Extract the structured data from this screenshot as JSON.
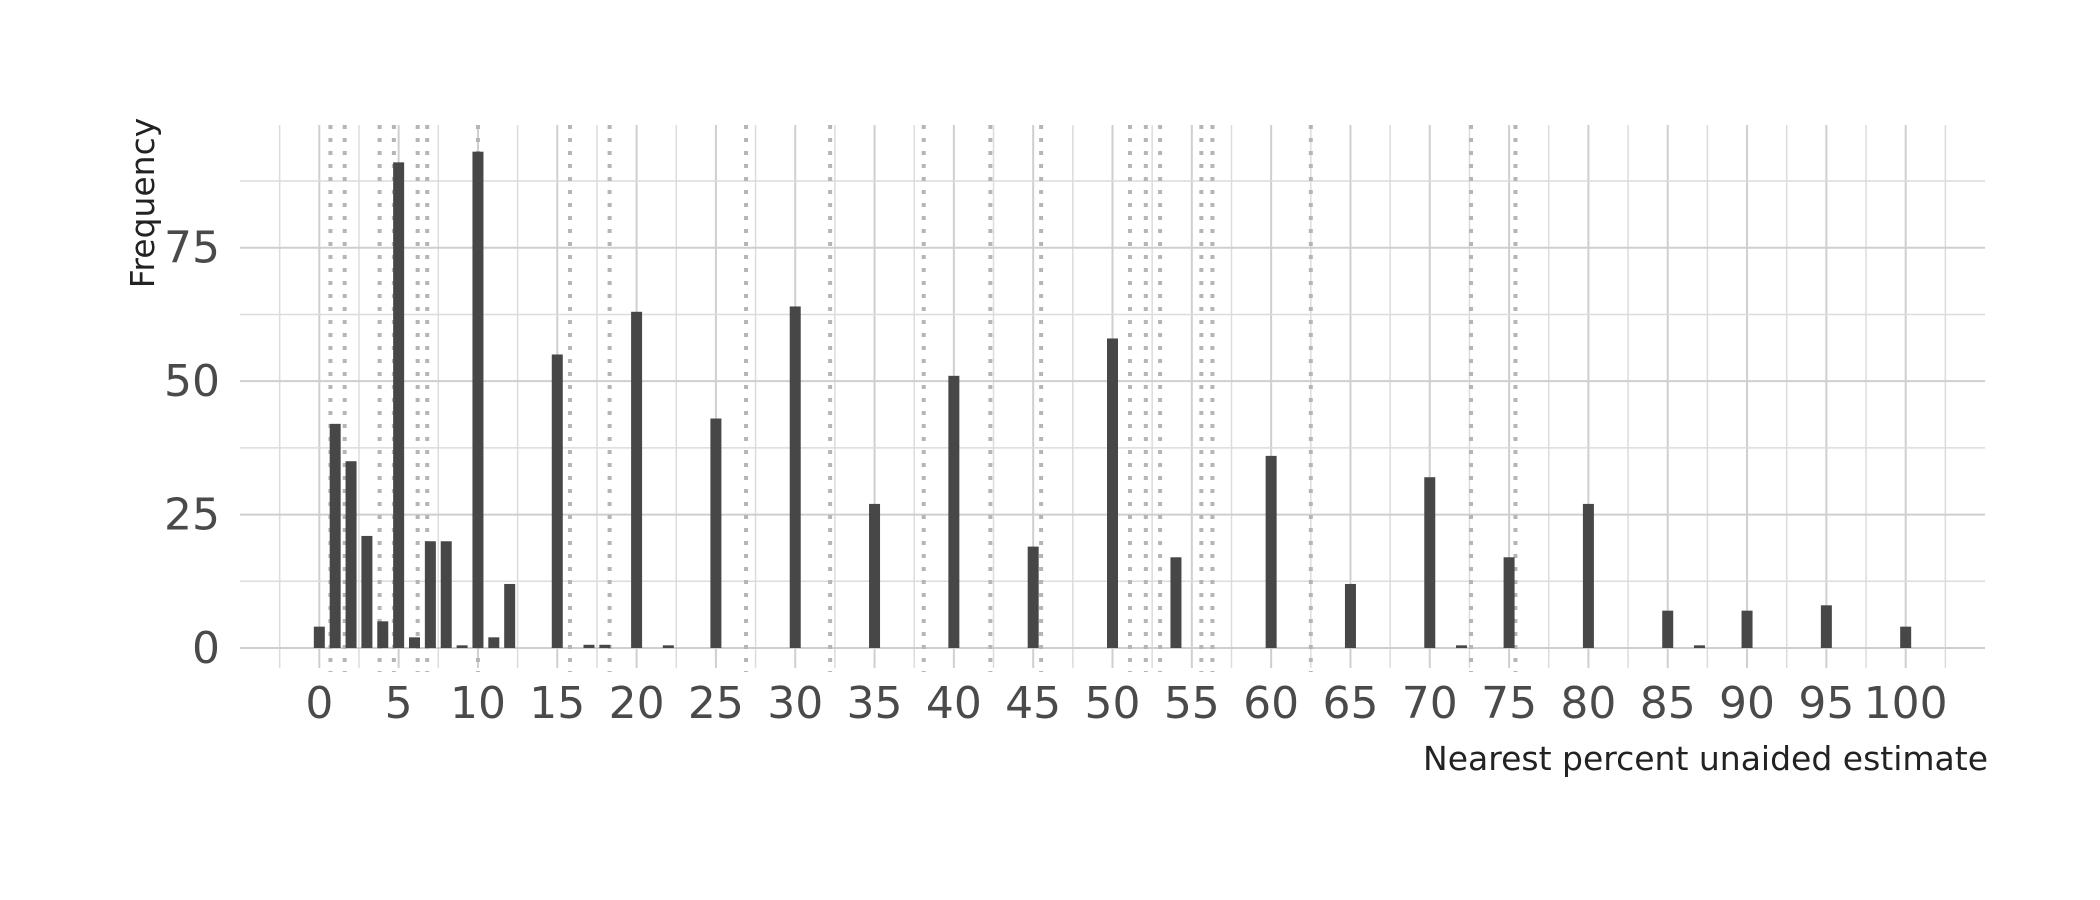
{
  "chart_data": {
    "type": "bar",
    "title": "",
    "xlabel": "Nearest percent unaided estimate",
    "ylabel": "Frequency",
    "xlim": [
      -5,
      105
    ],
    "ylim": [
      0,
      98
    ],
    "x_ticks": [
      "0",
      "5",
      "10",
      "15",
      "20",
      "25",
      "30",
      "35",
      "40",
      "45",
      "50",
      "55",
      "60",
      "65",
      "70",
      "75",
      "80",
      "85",
      "90",
      "95",
      "100"
    ],
    "y_ticks": [
      "0",
      "25",
      "50",
      "75"
    ],
    "grid": true,
    "bar_color": "#474747",
    "reference_line_color": "#b5b5b5",
    "reference_lines_x": [
      0.7,
      1.6,
      3.8,
      4.7,
      6.2,
      6.8,
      10.0,
      15.8,
      18.3,
      26.9,
      32.2,
      38.1,
      42.3,
      45.5,
      51.1,
      52.1,
      53.0,
      55.6,
      56.3,
      62.5,
      72.6,
      75.4
    ],
    "x": [
      0,
      1,
      2,
      3,
      4,
      5,
      6,
      7,
      8,
      9,
      10,
      11,
      12,
      15,
      17,
      18,
      20,
      22,
      25,
      30,
      35,
      40,
      45,
      50,
      54,
      60,
      65,
      70,
      72,
      75,
      80,
      85,
      87,
      90,
      95,
      100
    ],
    "values": [
      4,
      42,
      35,
      21,
      5,
      91,
      2,
      20,
      20,
      0.5,
      93,
      2,
      12,
      55,
      0.6,
      0.6,
      63,
      0.5,
      43,
      64,
      27,
      51,
      19,
      58,
      17,
      36,
      12,
      32,
      0.5,
      17,
      27,
      7,
      0.5,
      7,
      8,
      4
    ]
  }
}
